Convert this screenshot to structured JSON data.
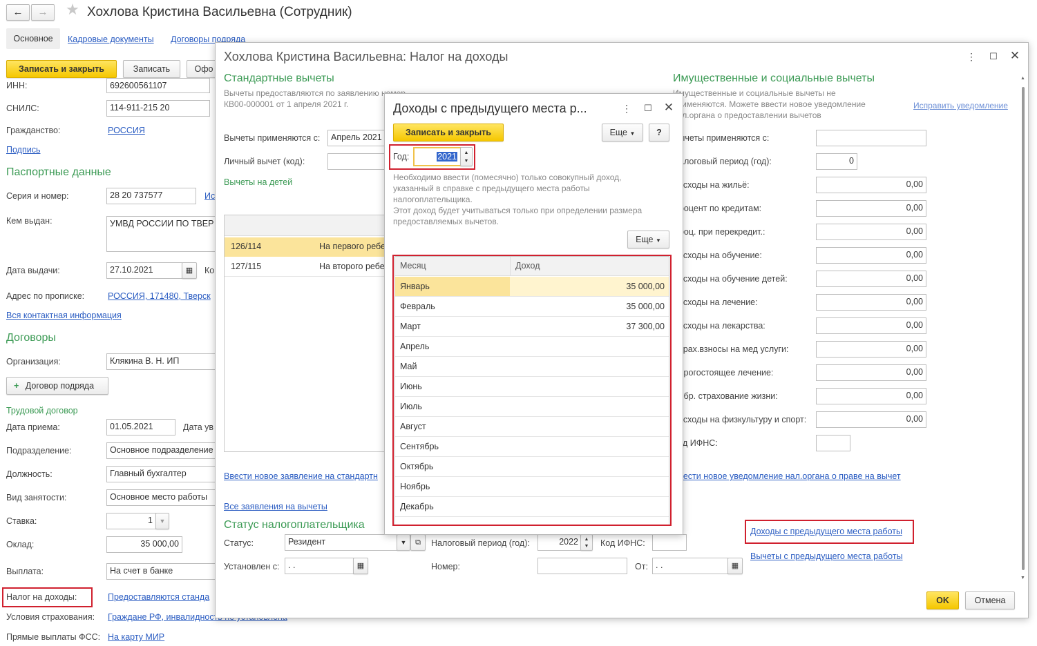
{
  "main_window": {
    "title": "Хохлова Кристина Васильевна (Сотрудник)",
    "tabs": [
      "Основное",
      "Кадровые документы",
      "Договоры подряда"
    ],
    "toolbar": {
      "save_close": "Записать и закрыть",
      "save": "Записать",
      "more": "Офо"
    },
    "inn_label": "ИНН:",
    "inn_value": "692600561107",
    "snils_label": "СНИЛС:",
    "snils_value": "114-911-215 20",
    "citizenship_label": "Гражданство:",
    "citizenship_value": "РОССИЯ",
    "signature_link": "Подпись",
    "passport_section": "Паспортные данные",
    "series_label": "Серия и номер:",
    "series_value": "28 20 737577",
    "series_link": "Ис",
    "issued_by_label": "Кем выдан:",
    "issued_by_value": "УМВД РОССИИ ПО ТВЕР",
    "issue_date_label": "Дата выдачи:",
    "issue_date_value": "27.10.2021",
    "issue_date_after": "Ко",
    "address_label": "Адрес по прописке:",
    "address_value": "РОССИЯ, 171480, Тверск",
    "contacts_link": "Вся контактная информация",
    "contracts_section": "Договоры",
    "org_label": "Организация:",
    "org_value": "Клякина В. Н. ИП",
    "contract_btn": "Договор подряда",
    "labor_contract": "Трудовой договор",
    "hire_date_label": "Дата приема:",
    "hire_date_value": "01.05.2021",
    "hire_date_after": "Дата ув",
    "dept_label": "Подразделение:",
    "dept_value": "Основное подразделение",
    "position_label": "Должность:",
    "position_value": "Главный бухгалтер",
    "employment_label": "Вид занятости:",
    "employment_value": "Основное место работы",
    "rate_label": "Ставка:",
    "rate_value": "1",
    "salary_label": "Оклад:",
    "salary_value": "35 000,00",
    "payment_label": "Выплата:",
    "payment_value": "На счет в банке",
    "tax_label": "Налог на доходы:",
    "tax_value": "Предоставляются станда",
    "insurance_label": "Условия страхования:",
    "insurance_value": "Граждане РФ, инвалидность не установлена",
    "fss_label": "Прямые выплаты ФСС:",
    "fss_value": "На карту МИР"
  },
  "tax_window": {
    "title": "Хохлова Кристина Васильевна: Налог на доходы",
    "std_section": "Стандартные вычеты",
    "std_note_1": "Вычеты предоставляются по заявлению номер",
    "std_note_2": "КВ00-000001 от 1 апреля 2021 г.",
    "applied_from_label": "Вычеты применяются с:",
    "applied_from_value": "Апрель 2021",
    "personal_label": "Личный вычет (код):",
    "children_link": "Вычеты на детей",
    "children_rows": [
      {
        "code": "126/114",
        "desc": "На первого ребе"
      },
      {
        "code": "127/115",
        "desc": "На второго ребе"
      }
    ],
    "new_application_link": "Ввести новое заявление на стандартн",
    "all_applications_link": "Все заявления на вычеты",
    "status_section": "Статус налогоплательщика",
    "status_label": "Статус:",
    "status_value": "Резидент",
    "tax_period_label": "Налоговый период (год):",
    "tax_period_value": "2022",
    "ifns_label": "Код ИФНС:",
    "set_from_label": "Установлен с:",
    "set_from_value": " .  .",
    "number_label": "Номер:",
    "from_label": "От:",
    "from_value": " .  .",
    "prop_section": "Имущественные и социальные вычеты",
    "prop_note_1": "Имущественные и социальные вычеты не",
    "prop_note_2": "применяются. Можете ввести новое уведомление",
    "prop_note_3": "нал.органа о предоставлении вычетов",
    "fix_link": "Исправить уведомление",
    "prop_rows": [
      {
        "label": "Вычеты применяются с:",
        "value": ""
      },
      {
        "label": "Налоговый период (год):",
        "value": "0"
      },
      {
        "label": "Расходы на жильё:",
        "value": "0,00"
      },
      {
        "label": "Процент по кредитам:",
        "value": "0,00"
      },
      {
        "label": "Проц. при перекредит.:",
        "value": "0,00"
      },
      {
        "label": "Расходы на обучение:",
        "value": "0,00"
      },
      {
        "label": "Расходы на обучение детей:",
        "value": "0,00"
      },
      {
        "label": "Расходы на лечение:",
        "value": "0,00"
      },
      {
        "label": "Расходы на лекарства:",
        "value": "0,00"
      },
      {
        "label": "Страх.взносы на мед услуги:",
        "value": "0,00"
      },
      {
        "label": "Дорогостоящее лечение:",
        "value": "0,00"
      },
      {
        "label": "Добр. страхование жизни:",
        "value": "0,00"
      },
      {
        "label": "Расходы на физкультуру и спорт:",
        "value": "0,00"
      },
      {
        "label": "Код ИФНС:",
        "value": ""
      }
    ],
    "new_notice_link": "Ввести новое уведомление нал.органа о праве на вычет",
    "prev_income_link": "Доходы с предыдущего места работы",
    "prev_deductions_link": "Вычеты с предыдущего места работы",
    "ok": "OK",
    "cancel": "Отмена"
  },
  "income_dialog": {
    "title": "Доходы с предыдущего места р...",
    "save_close": "Записать и закрыть",
    "more": "Еще",
    "help": "?",
    "year_label": "Год:",
    "year_value": "2021",
    "note_1": "Необходимо ввести (помесячно) только совокупный доход,",
    "note_2": "указанный в справке с предыдущего места работы",
    "note_3": "налогоплательщика.",
    "note_4": "Этот доход будет учитываться только при определении размера",
    "note_5": "предоставляемых вычетов.",
    "more2": "Еще",
    "col_month": "Месяц",
    "col_income": "Доход",
    "rows": [
      {
        "month": "Январь",
        "income": "35 000,00"
      },
      {
        "month": "Февраль",
        "income": "35 000,00"
      },
      {
        "month": "Март",
        "income": "37 300,00"
      },
      {
        "month": "Апрель",
        "income": ""
      },
      {
        "month": "Май",
        "income": ""
      },
      {
        "month": "Июнь",
        "income": ""
      },
      {
        "month": "Июль",
        "income": ""
      },
      {
        "month": "Август",
        "income": ""
      },
      {
        "month": "Сентябрь",
        "income": ""
      },
      {
        "month": "Октябрь",
        "income": ""
      },
      {
        "month": "Ноябрь",
        "income": ""
      },
      {
        "month": "Декабрь",
        "income": ""
      }
    ]
  },
  "colors": {
    "accent_yellow": "#f5c700",
    "highlight_red": "#d0202e",
    "link_blue": "#2a5cc2",
    "section_green": "#3b9a54",
    "selected_row": "#fbe49b"
  }
}
